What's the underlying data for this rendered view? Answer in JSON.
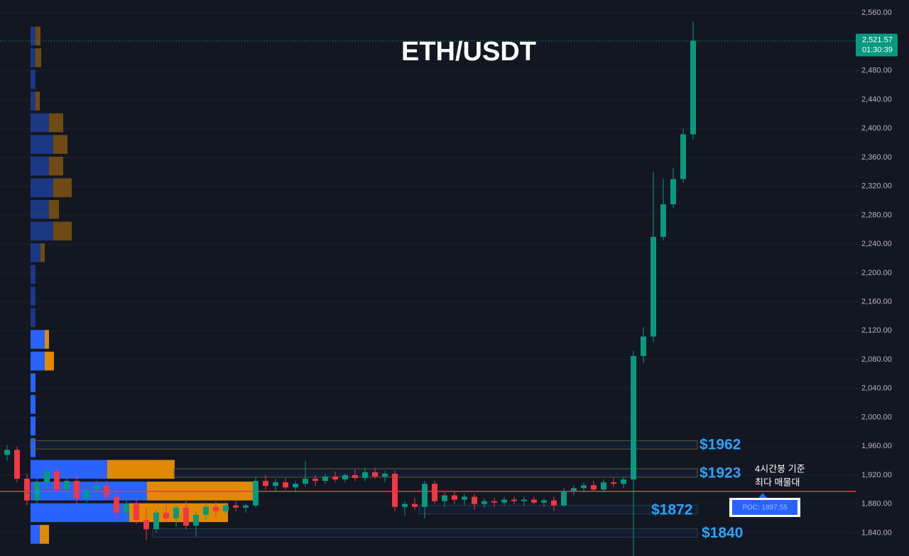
{
  "chart_data": {
    "type": "candlestick",
    "title": "ETH/USDT",
    "ylim": [
      1808,
      2578
    ],
    "yticks": [
      {
        "value": 1840,
        "label": "1,840.00"
      },
      {
        "value": 1880,
        "label": "1,880.00"
      },
      {
        "value": 1920,
        "label": "1,920.00"
      },
      {
        "value": 1960,
        "label": "1,960.00"
      },
      {
        "value": 2000,
        "label": "2,000.00"
      },
      {
        "value": 2040,
        "label": "2,040.00"
      },
      {
        "value": 2080,
        "label": "2,080.00"
      },
      {
        "value": 2120,
        "label": "2,120.00"
      },
      {
        "value": 2160,
        "label": "2,160.00"
      },
      {
        "value": 2200,
        "label": "2,200.00"
      },
      {
        "value": 2240,
        "label": "2,240.00"
      },
      {
        "value": 2280,
        "label": "2,280.00"
      },
      {
        "value": 2320,
        "label": "2,320.00"
      },
      {
        "value": 2360,
        "label": "2,360.00"
      },
      {
        "value": 2400,
        "label": "2,400.00"
      },
      {
        "value": 2440,
        "label": "2,440.00"
      },
      {
        "value": 2480,
        "label": "2,480.00"
      },
      {
        "value": 2520,
        "label": "2,520.00"
      },
      {
        "value": 2560,
        "label": "2,560.00"
      }
    ],
    "up_color": "#089981",
    "down_color": "#f23645",
    "ohlc": {
      "open": [
        1948,
        1955,
        1915,
        1885,
        1910,
        1925,
        1900,
        1912,
        1888,
        1900,
        1905,
        1890,
        1868,
        1880,
        1858,
        1845,
        1868,
        1860,
        1875,
        1850,
        1865,
        1876,
        1870,
        1878,
        1875,
        1878,
        1912,
        1905,
        1910,
        1903,
        1908,
        1915,
        1912,
        1918,
        1914,
        1920,
        1916,
        1924,
        1918,
        1922,
        1876,
        1880,
        1876,
        1908,
        1884,
        1892,
        1886,
        1890,
        1880,
        1884,
        1882,
        1886,
        1884,
        1886,
        1882,
        1885,
        1878,
        1898,
        1902,
        1906,
        1900,
        1910,
        1908,
        1914,
        2085,
        2112,
        2250,
        2295,
        2330,
        2392
      ],
      "high": [
        1962,
        1960,
        1922,
        1915,
        1930,
        1932,
        1918,
        1920,
        1905,
        1912,
        1912,
        1900,
        1885,
        1888,
        1875,
        1872,
        1880,
        1878,
        1885,
        1870,
        1880,
        1884,
        1882,
        1884,
        1880,
        1918,
        1920,
        1915,
        1916,
        1912,
        1940,
        1920,
        1922,
        1925,
        1922,
        1928,
        1930,
        1930,
        1926,
        1926,
        1884,
        1888,
        1912,
        1912,
        1896,
        1898,
        1894,
        1894,
        1888,
        1888,
        1890,
        1890,
        1890,
        1890,
        1888,
        1890,
        1902,
        1906,
        1910,
        1912,
        1914,
        1916,
        1918,
        2092,
        2125,
        2340,
        2330,
        2345,
        2400,
        2548
      ],
      "low": [
        1940,
        1910,
        1878,
        1880,
        1900,
        1895,
        1890,
        1880,
        1882,
        1890,
        1885,
        1860,
        1860,
        1852,
        1830,
        1840,
        1855,
        1848,
        1845,
        1835,
        1858,
        1862,
        1866,
        1870,
        1868,
        1875,
        1900,
        1898,
        1900,
        1896,
        1904,
        1905,
        1908,
        1910,
        1910,
        1912,
        1912,
        1915,
        1910,
        1870,
        1864,
        1872,
        1860,
        1880,
        1876,
        1880,
        1878,
        1872,
        1875,
        1876,
        1878,
        1880,
        1878,
        1880,
        1876,
        1870,
        1876,
        1892,
        1896,
        1898,
        1896,
        1904,
        1902,
        1805,
        2075,
        2105,
        2245,
        2290,
        2325,
        2385
      ],
      "close": [
        1955,
        1915,
        1885,
        1910,
        1925,
        1900,
        1912,
        1888,
        1900,
        1905,
        1890,
        1868,
        1880,
        1858,
        1845,
        1868,
        1860,
        1875,
        1850,
        1865,
        1876,
        1870,
        1878,
        1875,
        1878,
        1912,
        1905,
        1910,
        1903,
        1908,
        1915,
        1912,
        1918,
        1914,
        1920,
        1916,
        1924,
        1918,
        1922,
        1876,
        1880,
        1876,
        1908,
        1884,
        1892,
        1886,
        1890,
        1880,
        1884,
        1882,
        1886,
        1884,
        1886,
        1882,
        1885,
        1878,
        1898,
        1902,
        1906,
        1900,
        1910,
        1908,
        1914,
        2085,
        2112,
        2250,
        2295,
        2330,
        2392,
        2521.57
      ]
    },
    "volume_profile": {
      "price_top": 2543,
      "price_bottom": 1823,
      "buy_color": "#2962ff",
      "sell_color": "#e08a00",
      "buy": [
        7,
        7,
        7,
        7,
        26,
        32,
        26,
        32,
        26,
        32,
        14,
        7,
        7,
        7,
        20,
        20,
        7,
        7,
        7,
        7,
        108,
        164,
        139,
        13
      ],
      "sell": [
        7,
        8,
        0,
        6,
        20,
        20,
        20,
        26,
        14,
        26,
        6,
        0,
        0,
        0,
        6,
        13,
        0,
        0,
        0,
        0,
        95,
        151,
        139,
        13
      ]
    },
    "levels": [
      {
        "label": "$1962",
        "value": 1962
      },
      {
        "label": "$1923",
        "value": 1923
      },
      {
        "label": "$1872",
        "value": 1872
      },
      {
        "label": "$1840",
        "value": 1840
      }
    ],
    "level_color": "#2aa3f5",
    "poc": {
      "label": "POC: 1897.55",
      "value": 1897.55,
      "color": "#f23645"
    },
    "annotation": [
      "4시간봉 기준",
      "최다 매물대"
    ],
    "last_price": {
      "value": 2521.57,
      "label": "2,521.57"
    },
    "countdown": "01:30:39"
  }
}
